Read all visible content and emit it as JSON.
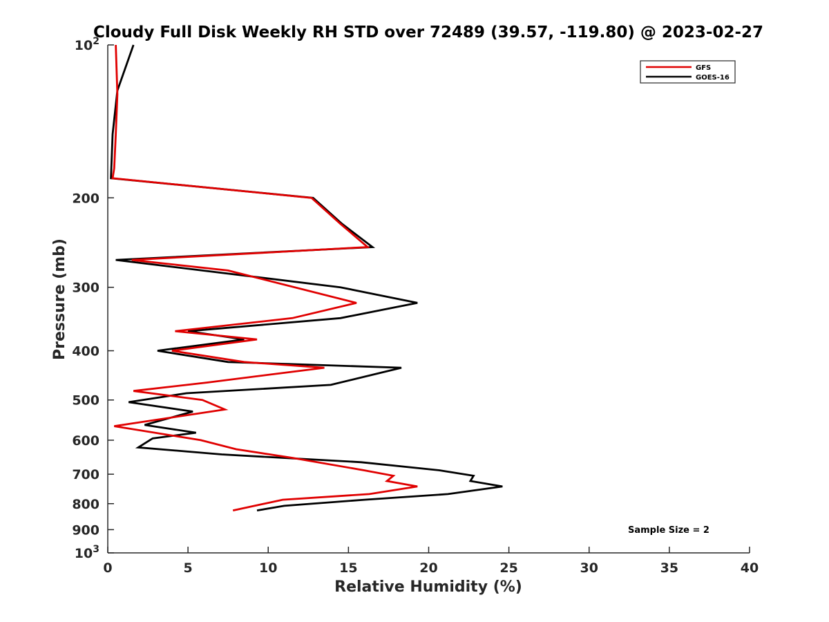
{
  "chart_data": {
    "type": "line",
    "title": "Cloudy Full Disk Weekly RH STD over 72489 (39.57, -119.80) @ 2023-02-27",
    "xlabel": "Relative Humidity (%)",
    "ylabel": "Pressure (mb)",
    "xlim": [
      0,
      40
    ],
    "ylim": [
      100,
      1000
    ],
    "yscale": "log",
    "y_reversed": true,
    "grid": false,
    "legend_position": "top-right",
    "x_ticks": [
      "0",
      "5",
      "10",
      "15",
      "20",
      "25",
      "30",
      "35",
      "40"
    ],
    "x_tick_values": [
      0,
      5,
      10,
      15,
      20,
      25,
      30,
      35,
      40
    ],
    "y_ticks": [
      "200",
      "300",
      "400",
      "500",
      "600",
      "700",
      "800",
      "900"
    ],
    "y_tick_values": [
      200,
      300,
      400,
      500,
      600,
      700,
      800,
      900
    ],
    "y_ticks_pow": [
      {
        "value": 100,
        "base": "10",
        "exp": "2"
      },
      {
        "value": 1000,
        "base": "10",
        "exp": "3"
      }
    ],
    "series": [
      {
        "name": "GFS",
        "color": "#e00000",
        "points": [
          {
            "x": 0.5,
            "y": 100
          },
          {
            "x": 0.6,
            "y": 125
          },
          {
            "x": 0.5,
            "y": 150
          },
          {
            "x": 0.4,
            "y": 175
          },
          {
            "x": 0.3,
            "y": 183
          },
          {
            "x": 12.7,
            "y": 200
          },
          {
            "x": 14.5,
            "y": 225
          },
          {
            "x": 16.2,
            "y": 250
          },
          {
            "x": 1.5,
            "y": 265
          },
          {
            "x": 7.5,
            "y": 278
          },
          {
            "x": 15.5,
            "y": 322
          },
          {
            "x": 11.5,
            "y": 345
          },
          {
            "x": 4.2,
            "y": 366
          },
          {
            "x": 9.3,
            "y": 380
          },
          {
            "x": 4.0,
            "y": 400
          },
          {
            "x": 8.5,
            "y": 421
          },
          {
            "x": 13.5,
            "y": 432
          },
          {
            "x": 6.2,
            "y": 462
          },
          {
            "x": 1.6,
            "y": 480
          },
          {
            "x": 5.9,
            "y": 500
          },
          {
            "x": 7.3,
            "y": 522
          },
          {
            "x": 0.4,
            "y": 563
          },
          {
            "x": 5.8,
            "y": 600
          },
          {
            "x": 8.0,
            "y": 625
          },
          {
            "x": 11.5,
            "y": 650
          },
          {
            "x": 16.0,
            "y": 688
          },
          {
            "x": 17.8,
            "y": 705
          },
          {
            "x": 17.4,
            "y": 722
          },
          {
            "x": 19.3,
            "y": 740
          },
          {
            "x": 16.3,
            "y": 766
          },
          {
            "x": 10.9,
            "y": 786
          },
          {
            "x": 7.8,
            "y": 825
          }
        ]
      },
      {
        "name": "GOES-16",
        "color": "#000000",
        "points": [
          {
            "x": 1.6,
            "y": 100
          },
          {
            "x": 0.6,
            "y": 123
          },
          {
            "x": 0.3,
            "y": 150
          },
          {
            "x": 0.2,
            "y": 183
          },
          {
            "x": 12.8,
            "y": 200
          },
          {
            "x": 14.6,
            "y": 225
          },
          {
            "x": 16.5,
            "y": 250
          },
          {
            "x": 0.5,
            "y": 265
          },
          {
            "x": 14.5,
            "y": 300
          },
          {
            "x": 19.3,
            "y": 322
          },
          {
            "x": 14.5,
            "y": 345
          },
          {
            "x": 5.0,
            "y": 366
          },
          {
            "x": 8.5,
            "y": 380
          },
          {
            "x": 3.1,
            "y": 400
          },
          {
            "x": 7.5,
            "y": 421
          },
          {
            "x": 18.3,
            "y": 432
          },
          {
            "x": 13.9,
            "y": 467
          },
          {
            "x": 4.9,
            "y": 485
          },
          {
            "x": 1.3,
            "y": 505
          },
          {
            "x": 5.3,
            "y": 527
          },
          {
            "x": 2.3,
            "y": 560
          },
          {
            "x": 5.5,
            "y": 580
          },
          {
            "x": 2.8,
            "y": 595
          },
          {
            "x": 1.9,
            "y": 620
          },
          {
            "x": 7.1,
            "y": 640
          },
          {
            "x": 15.8,
            "y": 663
          },
          {
            "x": 20.7,
            "y": 688
          },
          {
            "x": 22.8,
            "y": 705
          },
          {
            "x": 22.6,
            "y": 722
          },
          {
            "x": 24.6,
            "y": 740
          },
          {
            "x": 21.2,
            "y": 766
          },
          {
            "x": 16.0,
            "y": 786
          },
          {
            "x": 11.0,
            "y": 808
          },
          {
            "x": 9.3,
            "y": 825
          }
        ]
      }
    ],
    "annotations": [
      "Sample Size = 2"
    ]
  }
}
